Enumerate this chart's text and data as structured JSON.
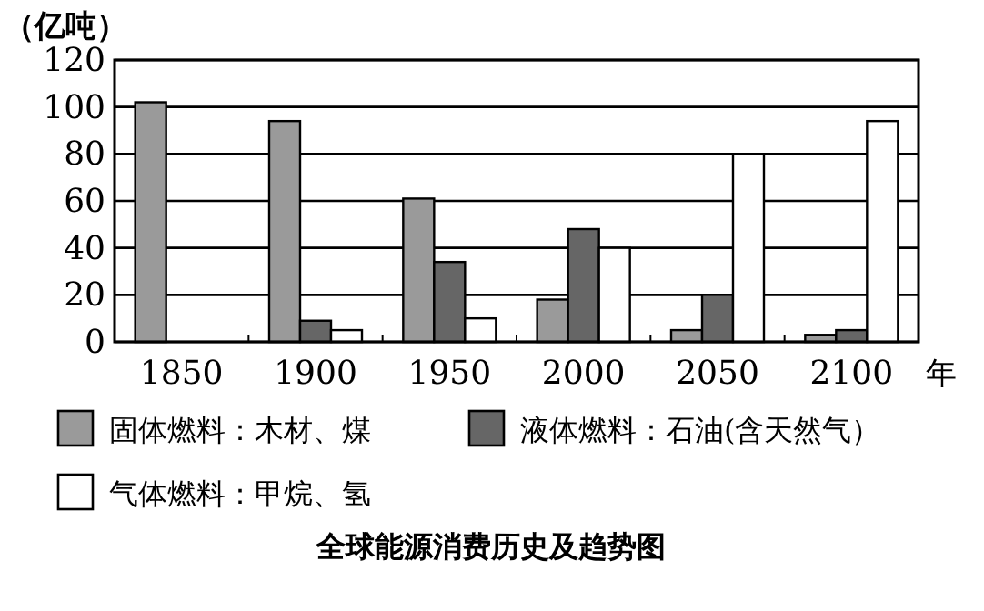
{
  "chart_data": {
    "type": "bar",
    "title": "全球能源消费历史及趋势图",
    "ylabel": "（亿吨）",
    "xlabel": "年",
    "categories": [
      "1850",
      "1900",
      "1950",
      "2000",
      "2050",
      "2100"
    ],
    "series": [
      {
        "name": "固体燃料：木材、煤",
        "color": "#9a9a9a",
        "values": [
          102,
          94,
          61,
          18,
          5,
          3
        ]
      },
      {
        "name": "液体燃料：石油(含天然气）",
        "color": "#666666",
        "values": [
          null,
          9,
          34,
          48,
          20,
          5
        ]
      },
      {
        "name": "气体燃料：甲烷、氢",
        "color": "#ffffff",
        "values": [
          null,
          5,
          10,
          40,
          80,
          94
        ]
      }
    ],
    "ylim": [
      0,
      120
    ],
    "yticks": [
      0,
      20,
      40,
      60,
      80,
      100,
      120
    ],
    "grid": "y",
    "legend": "bottom"
  }
}
